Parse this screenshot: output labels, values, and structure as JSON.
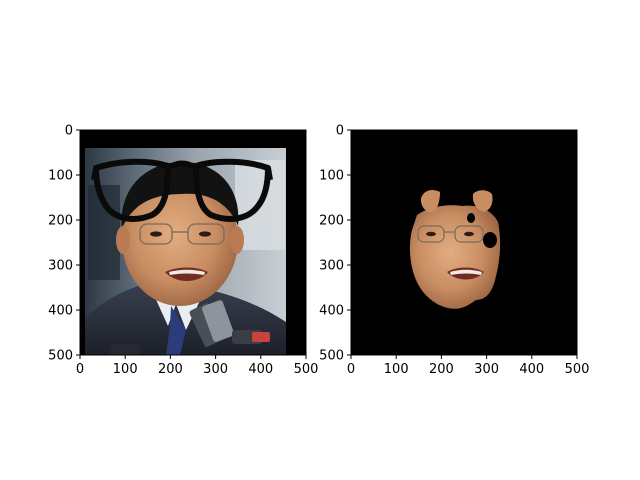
{
  "figure": {
    "background": "#ffffff",
    "axes_color": "#000000"
  },
  "chart_data": [
    {
      "type": "image",
      "name": "left-panel",
      "content": "photo of man with overlaid black eyeglasses graphic",
      "xlim": [
        0,
        500
      ],
      "ylim": [
        500,
        0
      ],
      "xticks": [
        0,
        100,
        200,
        300,
        400,
        500
      ],
      "yticks": [
        0,
        100,
        200,
        300,
        400,
        500
      ],
      "xtick_labels": [
        "0",
        "100",
        "200",
        "300",
        "400",
        "500"
      ],
      "ytick_labels": [
        "0",
        "100",
        "200",
        "300",
        "400",
        "500"
      ],
      "border_color": "#000000",
      "image_extent": [
        10,
        460,
        40,
        500
      ],
      "overlay": {
        "kind": "glasses",
        "color": "#0a0a0a",
        "extent_x": [
          30,
          430
        ],
        "extent_y": [
          70,
          205
        ]
      }
    },
    {
      "type": "image",
      "name": "right-panel",
      "content": "segmented face mask on black background",
      "xlim": [
        0,
        500
      ],
      "ylim": [
        500,
        0
      ],
      "xticks": [
        0,
        100,
        200,
        300,
        400,
        500
      ],
      "yticks": [
        0,
        100,
        200,
        300,
        400,
        500
      ],
      "xtick_labels": [
        "0",
        "100",
        "200",
        "300",
        "400",
        "500"
      ],
      "ytick_labels": [
        "0",
        "100",
        "200",
        "300",
        "400",
        "500"
      ],
      "background_color": "#000000",
      "mask_extent_x": [
        130,
        340
      ],
      "mask_extent_y": [
        130,
        400
      ]
    }
  ]
}
